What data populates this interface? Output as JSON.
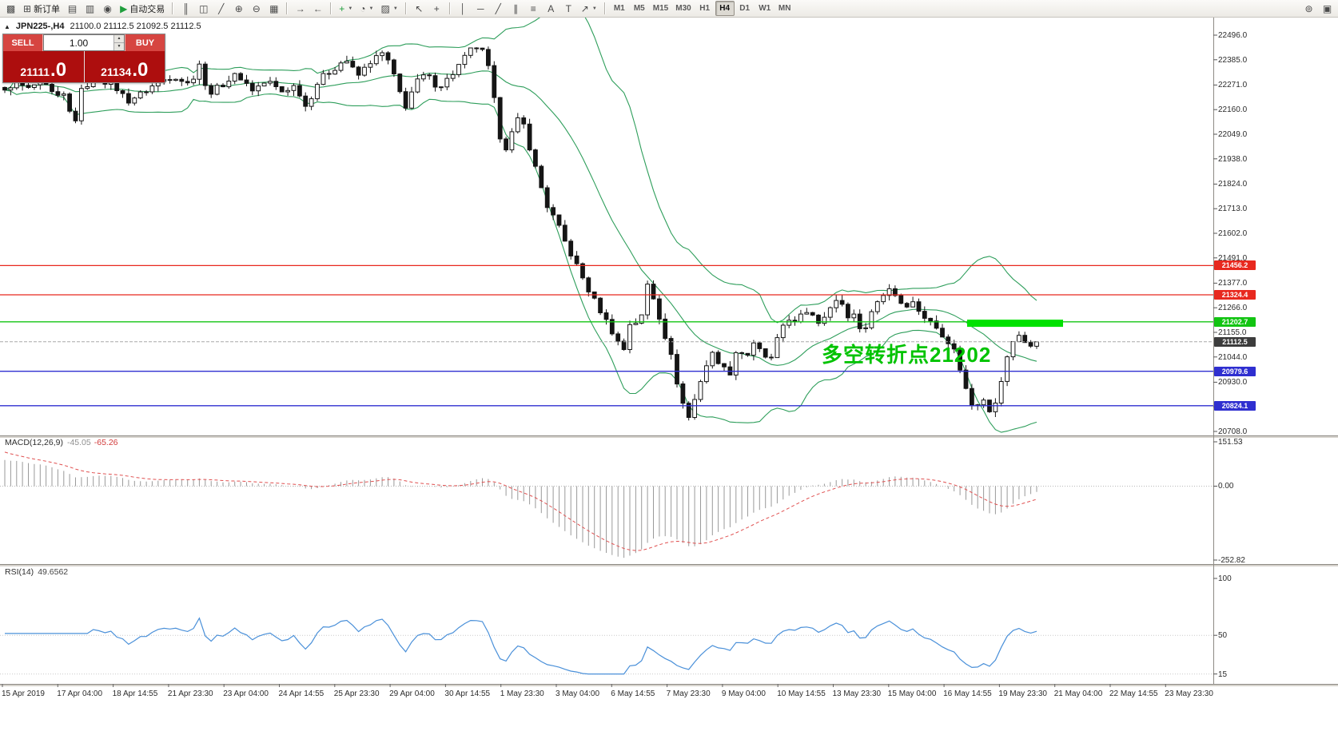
{
  "toolbar": {
    "caret": "▼",
    "buttons": [
      {
        "name": "terminal-button",
        "glyph": "▩"
      },
      {
        "name": "new-order-button",
        "glyph": "⊞",
        "label": "新订单"
      },
      {
        "name": "history-center-button",
        "glyph": "▤"
      },
      {
        "name": "profiles-button",
        "glyph": "▥"
      },
      {
        "name": "community-button",
        "glyph": "◉"
      },
      {
        "name": "auto-trading-button",
        "glyph": "▶",
        "label": "自动交易",
        "accent": "#1f9e3c"
      },
      {
        "sep": true
      },
      {
        "name": "bars-mode-button",
        "glyph": "║"
      },
      {
        "name": "candles-mode-button",
        "glyph": "◫"
      },
      {
        "name": "line-mode-button",
        "glyph": "╱"
      },
      {
        "name": "zoom-in-button",
        "glyph": "⊕"
      },
      {
        "name": "zoom-out-button",
        "glyph": "⊖"
      },
      {
        "name": "tile-windows-button",
        "glyph": "▦"
      },
      {
        "sep": true
      },
      {
        "name": "auto-scroll-button",
        "glyph": "→"
      },
      {
        "name": "chart-shift-button",
        "glyph": "←"
      },
      {
        "sep": true
      },
      {
        "name": "indicators-button",
        "glyph": "+",
        "accent": "#1f9e3c",
        "dropdown": true
      },
      {
        "name": "periods-button",
        "glyph": "◔",
        "dropdown": true
      },
      {
        "name": "templates-button",
        "glyph": "▨",
        "dropdown": true
      },
      {
        "sep": true
      },
      {
        "name": "cursor-button",
        "glyph": "↖"
      },
      {
        "name": "crosshair-button",
        "glyph": "+"
      },
      {
        "sep": true
      },
      {
        "name": "vertical-line-button",
        "glyph": "│"
      },
      {
        "name": "horizontal-line-button",
        "glyph": "─"
      },
      {
        "name": "trendline-button",
        "glyph": "╱"
      },
      {
        "name": "channel-button",
        "glyph": "∥"
      },
      {
        "name": "fibonacci-button",
        "glyph": "≡"
      },
      {
        "name": "text-button",
        "glyph": "A"
      },
      {
        "name": "label-button",
        "glyph": "T"
      },
      {
        "name": "arrows-button",
        "glyph": "↗",
        "dropdown": true
      },
      {
        "sep": true
      }
    ],
    "timeframes": [
      "M1",
      "M5",
      "M15",
      "M30",
      "H1",
      "H4",
      "D1",
      "W1",
      "MN"
    ],
    "active_timeframe": "H4",
    "right_buttons": [
      {
        "name": "quick-search-button",
        "glyph": "⊚"
      },
      {
        "name": "window-list-button",
        "glyph": "▣"
      }
    ]
  },
  "chart_header": {
    "marker": "▲",
    "symbol_period": "JPN225-,H4",
    "ohlc": "21100.0 21112.5 21092.5 21112.5"
  },
  "order_panel": {
    "sell_label": "SELL",
    "buy_label": "BUY",
    "volume": "1.00",
    "spinner_up": "▲",
    "spinner_down": "▼",
    "sell_price_main": "21111",
    "sell_price_pips": ".0",
    "buy_price_main": "21134",
    "buy_price_pips": ".0"
  },
  "annotation": {
    "text": "多空转折点21202",
    "color": "#00c300"
  },
  "price_axis": {
    "labels": [
      "22496.0",
      "22385.0",
      "22271.0",
      "22160.0",
      "22049.0",
      "21938.0",
      "21824.0",
      "21713.0",
      "21602.0",
      "21491.0",
      "21377.0",
      "21266.0",
      "21155.0",
      "21044.0",
      "20930.0",
      "20819.0",
      "20708.0"
    ],
    "badges": [
      {
        "value": "21456.2",
        "color": "#e8281e"
      },
      {
        "value": "21324.4",
        "color": "#e8281e"
      },
      {
        "value": "21202.7",
        "color": "#12c412"
      },
      {
        "value": "21112.5",
        "color": "#3c3c3c"
      },
      {
        "value": "20979.6",
        "color": "#2f2fd0"
      },
      {
        "value": "20824.1",
        "color": "#2f2fd0"
      }
    ]
  },
  "macd_panel": {
    "title": "MACD(12,26,9)",
    "value_main": "-45.05",
    "value_signal": "-65.26",
    "axis_labels": [
      "151.53",
      "0.00",
      "-252.82"
    ]
  },
  "rsi_panel": {
    "title": "RSI(14)",
    "value": "49.6562",
    "axis_labels": [
      "100",
      "50",
      "15"
    ]
  },
  "time_axis": {
    "labels": [
      "15 Apr 2019",
      "17 Apr 04:00",
      "18 Apr 14:55",
      "21 Apr 23:30",
      "23 Apr 04:00",
      "24 Apr 14:55",
      "25 Apr 23:30",
      "29 Apr 04:00",
      "30 Apr 14:55",
      "1 May 23:30",
      "3 May 04:00",
      "6 May 14:55",
      "7 May 23:30",
      "9 May 04:00",
      "10 May 14:55",
      "13 May 23:30",
      "15 May 04:00",
      "16 May 14:55",
      "19 May 23:30",
      "21 May 04:00",
      "22 May 14:55",
      "23 May 23:30"
    ]
  },
  "colors": {
    "bull_fill": "#ffffff",
    "bear_fill": "#151515",
    "band_green": "#2e9e5b",
    "macd_hist": "#9a9a9a",
    "macd_signal": "#e05050",
    "rsi_line": "#4a90d9"
  },
  "chart_data": {
    "type": "candlestick",
    "symbol": "JPN225-",
    "period": "H4",
    "ohlc_current": {
      "open": 21100.0,
      "high": 21112.5,
      "low": 21092.5,
      "close": 21112.5
    },
    "price_range_top": 22496.0,
    "price_range_bottom": 20708.0,
    "current_price": 21112.5,
    "candle_count": 176,
    "levels": [
      {
        "price": 21456.2,
        "color": "#e8281e"
      },
      {
        "price": 21324.4,
        "color": "#e8281e"
      },
      {
        "price": 21202.7,
        "color": "#12c412"
      },
      {
        "price": 20979.6,
        "color": "#2f2fd0"
      },
      {
        "price": 20824.1,
        "color": "#2f2fd0"
      }
    ],
    "highlight_segment": {
      "price": 21196,
      "from_frac": 0.797,
      "to_frac": 0.876,
      "color": "#00e100",
      "thickness_px": 9
    },
    "indicators": {
      "bollinger": {
        "period": 20,
        "deviation": 2
      },
      "macd": {
        "fast": 12,
        "slow": 26,
        "signal": 9,
        "axis": [
          151.53,
          0.0,
          -252.82
        ]
      },
      "rsi": {
        "period": 14,
        "axis": [
          100,
          50,
          15
        ]
      }
    },
    "close_path": [
      [
        0.0,
        22240
      ],
      [
        0.01,
        22290
      ],
      [
        0.022,
        22250
      ],
      [
        0.035,
        22290
      ],
      [
        0.05,
        22210
      ],
      [
        0.06,
        22230
      ],
      [
        0.066,
        22060
      ],
      [
        0.075,
        22260
      ],
      [
        0.09,
        22300
      ],
      [
        0.105,
        22270
      ],
      [
        0.12,
        22200
      ],
      [
        0.135,
        22240
      ],
      [
        0.15,
        22290
      ],
      [
        0.165,
        22310
      ],
      [
        0.18,
        22270
      ],
      [
        0.188,
        22380
      ],
      [
        0.196,
        22230
      ],
      [
        0.21,
        22270
      ],
      [
        0.225,
        22320
      ],
      [
        0.24,
        22250
      ],
      [
        0.255,
        22290
      ],
      [
        0.268,
        22240
      ],
      [
        0.282,
        22270
      ],
      [
        0.292,
        22170
      ],
      [
        0.305,
        22300
      ],
      [
        0.318,
        22340
      ],
      [
        0.33,
        22390
      ],
      [
        0.342,
        22310
      ],
      [
        0.355,
        22380
      ],
      [
        0.368,
        22420
      ],
      [
        0.378,
        22300
      ],
      [
        0.388,
        22170
      ],
      [
        0.398,
        22280
      ],
      [
        0.408,
        22320
      ],
      [
        0.42,
        22260
      ],
      [
        0.432,
        22310
      ],
      [
        0.445,
        22390
      ],
      [
        0.455,
        22450
      ],
      [
        0.463,
        22420
      ],
      [
        0.47,
        22330
      ],
      [
        0.477,
        22120
      ],
      [
        0.483,
        21960
      ],
      [
        0.492,
        22060
      ],
      [
        0.5,
        22140
      ],
      [
        0.508,
        22000
      ],
      [
        0.516,
        21870
      ],
      [
        0.525,
        21730
      ],
      [
        0.535,
        21650
      ],
      [
        0.545,
        21540
      ],
      [
        0.555,
        21450
      ],
      [
        0.565,
        21350
      ],
      [
        0.575,
        21270
      ],
      [
        0.585,
        21190
      ],
      [
        0.593,
        21120
      ],
      [
        0.6,
        21080
      ],
      [
        0.608,
        21240
      ],
      [
        0.615,
        21160
      ],
      [
        0.622,
        21380
      ],
      [
        0.628,
        21320
      ],
      [
        0.636,
        21200
      ],
      [
        0.645,
        21060
      ],
      [
        0.652,
        20920
      ],
      [
        0.658,
        20820
      ],
      [
        0.664,
        20760
      ],
      [
        0.67,
        20880
      ],
      [
        0.678,
        20990
      ],
      [
        0.686,
        21060
      ],
      [
        0.694,
        21010
      ],
      [
        0.702,
        20960
      ],
      [
        0.71,
        21090
      ],
      [
        0.718,
        21040
      ],
      [
        0.726,
        21100
      ],
      [
        0.734,
        21060
      ],
      [
        0.742,
        21020
      ],
      [
        0.75,
        21140
      ],
      [
        0.758,
        21230
      ],
      [
        0.765,
        21190
      ],
      [
        0.772,
        21230
      ],
      [
        0.78,
        21260
      ],
      [
        0.788,
        21200
      ],
      [
        0.795,
        21240
      ],
      [
        0.803,
        21280
      ],
      [
        0.81,
        21310
      ],
      [
        0.816,
        21210
      ],
      [
        0.822,
        21260
      ],
      [
        0.83,
        21140
      ],
      [
        0.838,
        21230
      ],
      [
        0.845,
        21290
      ],
      [
        0.852,
        21330
      ],
      [
        0.858,
        21360
      ],
      [
        0.865,
        21310
      ],
      [
        0.872,
        21270
      ],
      [
        0.878,
        21300
      ],
      [
        0.885,
        21260
      ],
      [
        0.892,
        21220
      ],
      [
        0.9,
        21190
      ],
      [
        0.908,
        21150
      ],
      [
        0.915,
        21110
      ],
      [
        0.922,
        21060
      ],
      [
        0.928,
        20950
      ],
      [
        0.934,
        20860
      ],
      [
        0.94,
        20800
      ],
      [
        0.946,
        20880
      ],
      [
        0.951,
        20840
      ],
      [
        0.956,
        20790
      ],
      [
        0.962,
        20850
      ],
      [
        0.968,
        20990
      ],
      [
        0.975,
        21090
      ],
      [
        0.981,
        21160
      ],
      [
        0.987,
        21120
      ],
      [
        0.993,
        21080
      ],
      [
        1.0,
        21112.5
      ]
    ]
  }
}
